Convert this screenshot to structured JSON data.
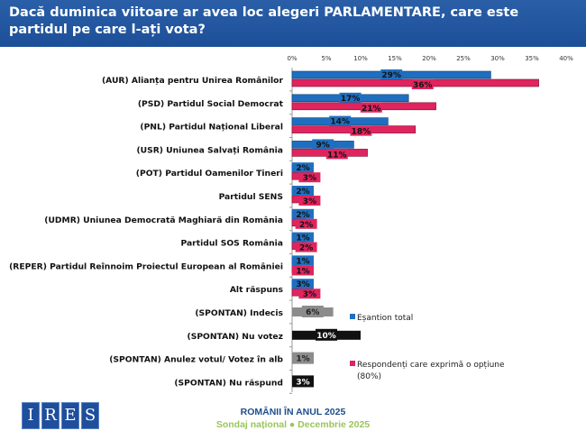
{
  "header": {
    "title": "Dacă duminica viitoare ar avea loc alegeri PARLAMENTARE, care este partidul pe care l-ați vota?"
  },
  "colors": {
    "esantion": "#1f6fc0",
    "respondenti": "#e0245e",
    "gray": "#8c8c8c",
    "black": "#111111"
  },
  "chart_data": {
    "type": "bar",
    "orientation": "horizontal",
    "grid": false,
    "xlim": [
      0,
      40
    ],
    "ticks": [
      "0%",
      "5%",
      "10%",
      "15%",
      "20%",
      "25%",
      "30%",
      "35%",
      "40%"
    ],
    "categories": [
      "(AUR) Alianța pentru Unirea Românilor",
      "(PSD) Partidul Social Democrat",
      "(PNL) Partidul Național Liberal",
      "(USR) Uniunea Salvați România",
      "(POT) Partidul Oamenilor Tineri",
      "Partidul SENS",
      "(UDMR) Uniunea Democrată Maghiară din România",
      "Partidul SOS România",
      "(REPER) Partidul Reînnoim Proiectul European al României",
      "Alt răspuns",
      "(SPONTAN) Indecis",
      "(SPONTAN) Nu votez",
      "(SPONTAN) Anulez votul/ Votez în alb",
      "(SPONTAN) Nu răspund"
    ],
    "series": [
      {
        "name": "Eșantion total",
        "values": [
          29,
          17,
          14,
          9,
          2,
          2,
          2,
          1,
          1,
          3,
          6,
          10,
          1,
          3
        ]
      },
      {
        "name": "Respondenți care exprimă o opțiune (80%)",
        "values": [
          36,
          21,
          18,
          11,
          3,
          3,
          2,
          2,
          1,
          3,
          null,
          null,
          null,
          null
        ]
      }
    ],
    "legend": "right"
  },
  "logo": {
    "letters": [
      "I",
      "R",
      "E",
      "S"
    ]
  },
  "footer": {
    "line1": "ROMÂNII ÎN ANUL 2025",
    "line2": "Sondaj național ● Decembrie 2025"
  }
}
